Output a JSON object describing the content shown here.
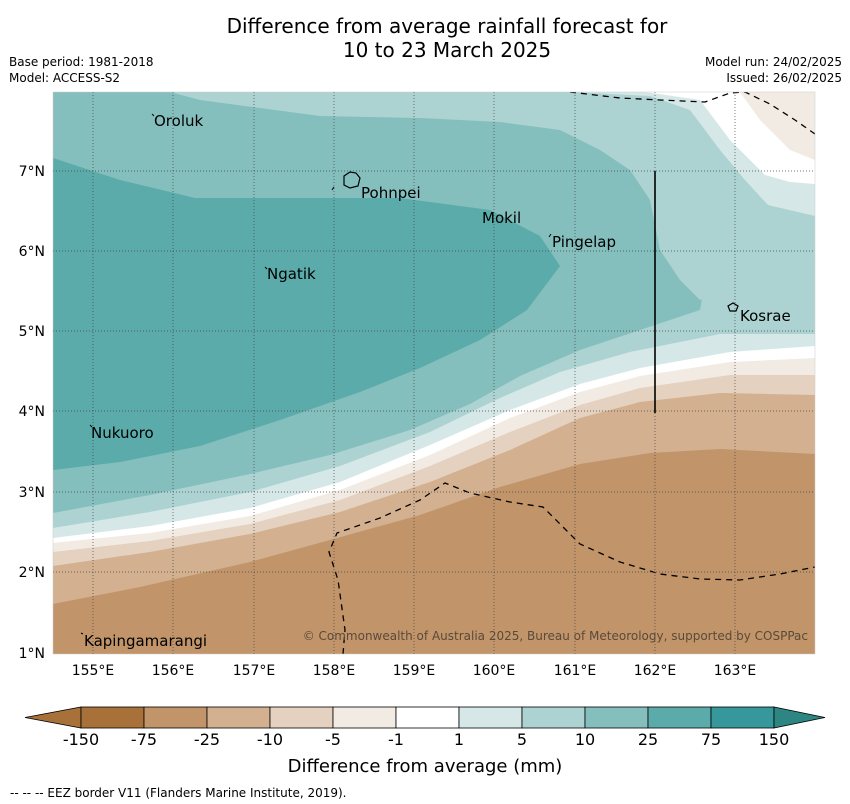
{
  "title": {
    "line1": "Difference from average rainfall forecast for",
    "line2": "10 to 23 March 2025"
  },
  "meta": {
    "base_period": "Base period: 1981-2018",
    "model": "Model: ACCESS-S2",
    "model_run": "Model run: 24/02/2025",
    "issued": "Issued: 26/02/2025"
  },
  "map": {
    "longitude_labels": [
      "155°E",
      "156°E",
      "157°E",
      "158°E",
      "159°E",
      "160°E",
      "161°E",
      "162°E",
      "163°E"
    ],
    "latitude_labels": [
      "7°N",
      "6°N",
      "5°N",
      "4°N",
      "3°N",
      "2°N",
      "1°N"
    ],
    "places": [
      {
        "name": "Oroluk"
      },
      {
        "name": "Pohnpei"
      },
      {
        "name": "Mokil"
      },
      {
        "name": "Pingelap"
      },
      {
        "name": "Ngatik"
      },
      {
        "name": "Kosrae"
      },
      {
        "name": "Nukuoro"
      },
      {
        "name": "Kapingamarangi"
      }
    ],
    "copyright": "© Commonwealth of Australia 2025, Bureau of Meteorology, supported by COSPPac"
  },
  "colorbar": {
    "labels": [
      "-150",
      "-75",
      "-25",
      "-10",
      "-5",
      "-1",
      "1",
      "5",
      "10",
      "25",
      "75",
      "150"
    ],
    "colors": [
      "#a8713a",
      "#c19469",
      "#d3b08f",
      "#e4d1bf",
      "#f1ebe3",
      "#ffffff",
      "#d5e8e7",
      "#acd3d2",
      "#84bfbe",
      "#5aabaa",
      "#36989a",
      "#2e8683"
    ],
    "title": "Difference from average (mm)"
  },
  "footer": {
    "eez": "--  --  -- EEZ border V11 (Flanders Marine Institute, 2019)."
  }
}
